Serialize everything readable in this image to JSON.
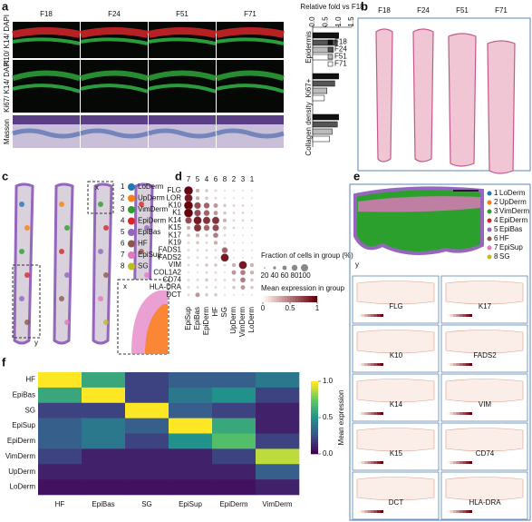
{
  "panels": {
    "a": {
      "label": "a",
      "columns": [
        "F18",
        "F24",
        "F51",
        "F71"
      ],
      "rows": [
        "K10/ K14/ DAPI",
        "Ki67/ K14/ DAPI",
        "Masson"
      ],
      "chart": {
        "type": "hbar",
        "title": "Relative fold vs F18",
        "categories": [
          "Epidermis",
          "Ki67+",
          "Collagen density"
        ],
        "series": [
          {
            "name": "F18",
            "color": "#111111",
            "values": [
              1,
              1,
              1
            ]
          },
          {
            "name": "F24",
            "color": "#555555",
            "values": [
              0.95,
              0.85,
              0.95
            ]
          },
          {
            "name": "F51",
            "color": "#bbbbbb",
            "values": [
              0.8,
              0.55,
              0.75
            ]
          },
          {
            "name": "F71",
            "color": "#ffffff",
            "values": [
              0.75,
              0.45,
              0.65
            ]
          }
        ],
        "xlim": [
          0,
          1.5
        ],
        "xticks": [
          {
            "value": 0,
            "label": "0.0"
          },
          {
            "value": 0.5,
            "label": "0.5"
          },
          {
            "value": 1,
            "label": "1.0"
          },
          {
            "value": 1.5,
            "label": "1.5"
          }
        ]
      }
    },
    "b": {
      "label": "b",
      "columns": [
        "F18",
        "F24",
        "F51",
        "F71"
      ]
    },
    "c": {
      "label": "c",
      "clusters": [
        {
          "number": 1,
          "name": "LoDerm",
          "color": "#1f77b4"
        },
        {
          "number": 2,
          "name": "UpDerm",
          "color": "#ff7f0e"
        },
        {
          "number": 3,
          "name": "VimDerm",
          "color": "#2ca02c"
        },
        {
          "number": 4,
          "name": "EpiDerm",
          "color": "#d62728"
        },
        {
          "number": 5,
          "name": "EpiBas",
          "color": "#9467bd"
        },
        {
          "number": 6,
          "name": "HF",
          "color": "#8c564b"
        },
        {
          "number": 7,
          "name": "EpiSup",
          "color": "#e377c2"
        },
        {
          "number": 8,
          "name": "SG",
          "color": "#bcbd22"
        }
      ],
      "inset_x": "x",
      "inset_y": "y",
      "zoom": "x"
    },
    "d": {
      "label": "d",
      "chart": {
        "type": "dot",
        "genes": [
          "FLG",
          "LOR",
          "K10",
          "K1",
          "K14",
          "K15",
          "K17",
          "K19",
          "FADS1",
          "FADS2",
          "VIM",
          "COL1A2",
          "CD74",
          "HLA-DRA",
          "DCT"
        ],
        "groups": [
          "EpiSup",
          "EpiBas",
          "EpiDerm",
          "HF",
          "SG",
          "UpDerm",
          "VimDerm",
          "LoDerm"
        ],
        "group_numbers": [
          7,
          5,
          4,
          6,
          8,
          2,
          3,
          1
        ],
        "values": [
          [
            1,
            0.3,
            0.2,
            0.1,
            0,
            0,
            0,
            0
          ],
          [
            0.9,
            0.3,
            0.2,
            0.1,
            0,
            0,
            0,
            0
          ],
          [
            1,
            0.7,
            0.6,
            0.4,
            0.2,
            0.1,
            0.1,
            0
          ],
          [
            1,
            0.7,
            0.6,
            0.4,
            0.2,
            0.1,
            0.1,
            0
          ],
          [
            0.7,
            0.9,
            0.8,
            0.8,
            0.3,
            0.1,
            0.1,
            0.1
          ],
          [
            0.3,
            0.8,
            0.6,
            0.7,
            0.2,
            0.1,
            0,
            0
          ],
          [
            0.2,
            0.3,
            0.2,
            0.5,
            0.1,
            0,
            0,
            0
          ],
          [
            0.1,
            0.2,
            0.1,
            0.3,
            0.1,
            0,
            0,
            0
          ],
          [
            0.1,
            0.1,
            0.1,
            0.1,
            0.6,
            0,
            0,
            0
          ],
          [
            0.1,
            0.1,
            0.1,
            0.1,
            0.9,
            0,
            0,
            0
          ],
          [
            0.1,
            0.1,
            0.2,
            0.2,
            0.1,
            0.3,
            0.9,
            0.3
          ],
          [
            0,
            0,
            0.1,
            0.1,
            0,
            0.4,
            0.5,
            0.3
          ],
          [
            0.1,
            0.1,
            0.2,
            0.1,
            0.1,
            0.2,
            0.5,
            0.2
          ],
          [
            0.1,
            0.1,
            0.1,
            0.1,
            0,
            0.2,
            0.4,
            0.2
          ],
          [
            0.1,
            0.4,
            0.2,
            0.2,
            0,
            0,
            0,
            0
          ]
        ],
        "size_title": "Fraction of cells in group (%)",
        "size_ticks": [
          20,
          40,
          60,
          80,
          100
        ],
        "color_title": "Mean expression in group",
        "color_ticks": [
          0,
          0.5,
          1
        ]
      }
    },
    "e": {
      "label": "e",
      "map_label": "y",
      "genes": [
        "FLG",
        "K17",
        "K10",
        "FADS2",
        "K14",
        "VIM",
        "K15",
        "CD74",
        "DCT",
        "HLA-DRA"
      ]
    },
    "f": {
      "label": "f",
      "chart": {
        "type": "heatmap",
        "rows": [
          "HF",
          "EpiBas",
          "SG",
          "EpiSup",
          "EpiDerm",
          "VimDerm",
          "UpDerm",
          "LoDerm"
        ],
        "columns": [
          "HF",
          "EpiBas",
          "SG",
          "EpiSup",
          "EpiDerm",
          "VimDerm"
        ],
        "values": [
          [
            1,
            0.6,
            0.2,
            0.3,
            0.3,
            0.4
          ],
          [
            0.6,
            1,
            0.2,
            0.4,
            0.5,
            0.2
          ],
          [
            0.2,
            0.2,
            1,
            0.3,
            0.2,
            0.1
          ],
          [
            0.3,
            0.4,
            0.3,
            1,
            0.6,
            0.1
          ],
          [
            0.3,
            0.4,
            0.2,
            0.5,
            0.7,
            0.2
          ],
          [
            0.2,
            0.1,
            0.1,
            0.1,
            0.2,
            0.9
          ],
          [
            0.1,
            0.1,
            0.1,
            0.1,
            0.1,
            0.3
          ],
          [
            0.05,
            0.05,
            0.05,
            0.05,
            0.05,
            0.1
          ]
        ],
        "colorbar_title": "Mean expression",
        "clim": [
          0,
          1
        ],
        "cticks": [
          {
            "value": 0,
            "label": "0.0"
          },
          {
            "value": 0.5,
            "label": "0.5"
          },
          {
            "value": 1,
            "label": "1.0"
          }
        ]
      }
    }
  }
}
